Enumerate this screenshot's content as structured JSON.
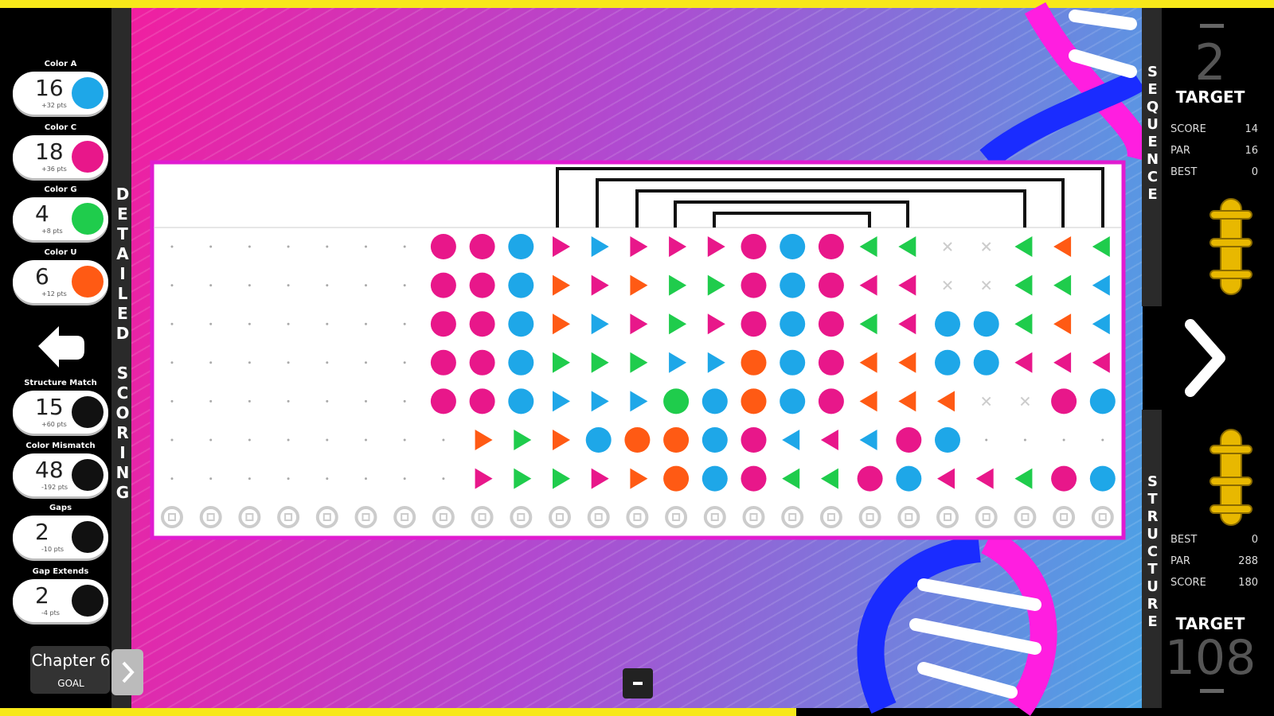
{
  "left_panel": {
    "items": [
      {
        "label": "Color A",
        "count": "16",
        "points": "+32 pts",
        "icon": "#1ea7e8"
      },
      {
        "label": "Color C",
        "count": "18",
        "points": "+36 pts",
        "icon": "#e8178a"
      },
      {
        "label": "Color G",
        "count": "4",
        "points": "+8 pts",
        "icon": "#1fcc4c"
      },
      {
        "label": "Color U",
        "count": "6",
        "points": "+12 pts",
        "icon": "#ff5a14"
      },
      {
        "label": "Structure Match",
        "count": "15",
        "points": "+60 pts",
        "icon": "#111111"
      },
      {
        "label": "Color Mismatch",
        "count": "48",
        "points": "-192 pts",
        "icon": "#111111"
      },
      {
        "label": "Gaps",
        "count": "2",
        "points": "-10 pts",
        "icon": "#111111"
      },
      {
        "label": "Gap Extends",
        "count": "2",
        "points": "-4 pts",
        "icon": "#111111"
      }
    ],
    "chapter": "Chapter 6",
    "goal": "GOAL"
  },
  "side_labels": {
    "detailed_scoring": "DETAILED SCORING",
    "sequence": "SEQUENCE",
    "structure": "STRUCTURE"
  },
  "sequence_panel": {
    "level": "2",
    "target_label": "TARGET",
    "stats": [
      {
        "label": "SCORE",
        "value": "14"
      },
      {
        "label": "PAR",
        "value": "16"
      },
      {
        "label": "BEST",
        "value": "0"
      }
    ]
  },
  "structure_panel": {
    "stats": [
      {
        "label": "BEST",
        "value": "0"
      },
      {
        "label": "PAR",
        "value": "288"
      },
      {
        "label": "SCORE",
        "value": "180"
      }
    ],
    "target_label": "TARGET",
    "target_value": "108"
  }
}
